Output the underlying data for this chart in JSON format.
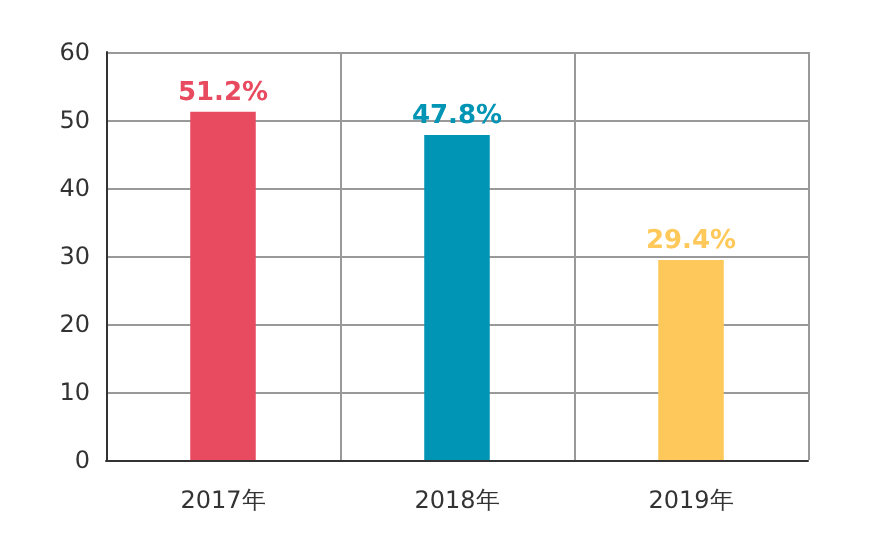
{
  "chart_data": {
    "type": "bar",
    "categories": [
      "2017年",
      "2018年",
      "2019年"
    ],
    "values": [
      51.2,
      47.8,
      29.4
    ],
    "colors": [
      "#e84a5f",
      "#0094b5",
      "#fec95a"
    ],
    "value_labels": [
      "51.2%",
      "47.8%",
      "29.4%"
    ],
    "ylim": [
      0,
      60
    ],
    "yticks": [
      0,
      10,
      20,
      30,
      40,
      50,
      60
    ],
    "grid": true
  }
}
